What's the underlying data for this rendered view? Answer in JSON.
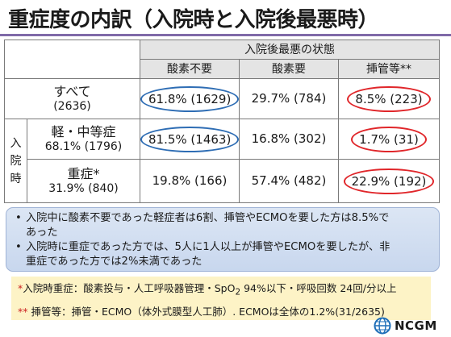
{
  "title": "重症度の内訳（入院時と入院後最悪時）",
  "table": {
    "group_header": "入院後最悪の状態",
    "col_headers": [
      "酸素不要",
      "酸素要",
      "挿管等**"
    ],
    "side_label_chars": [
      "入",
      "院",
      "時"
    ],
    "rows": [
      {
        "label": "すべて",
        "count": "(2636)",
        "cells": [
          "61.8% (1629)",
          "29.7% (784)",
          "8.5% (223)"
        ]
      },
      {
        "label": "軽・中等症",
        "count": "68.1% (1796)",
        "cells": [
          "81.5% (1463)",
          "16.8% (302)",
          "1.7% (31)"
        ]
      },
      {
        "label": "重症*",
        "count": "31.9% (840)",
        "cells": [
          "19.8% (166)",
          "57.4% (482)",
          "22.9% (192)"
        ]
      }
    ]
  },
  "summary": {
    "bullet": "•",
    "items": [
      {
        "line1": "入院中に酸素不要であった軽症者は6割、挿管やECMOを要した方は8.5%で",
        "line2": "あった"
      },
      {
        "line1": "入院時に重症であった方では、5人に1人以上が挿管やECMOを要したが、非",
        "line2": "重症であった方では2%未満であった"
      }
    ]
  },
  "notes": {
    "note1_star": "*",
    "note1_text": "入院時重症：酸素投与・人工呼吸器管理・SpO",
    "note1_sub": "2",
    "note1_tail": " 94%以下・呼吸回数 24回/分以上",
    "note2_star": "**",
    "note2_text": " 挿管等：挿管・ECMO（体外式膜型人工肺）. ECMOは全体の1.2%(31/2635)"
  },
  "logo": {
    "text": "NCGM",
    "icon": "globe-logo-icon"
  },
  "colors": {
    "blue_oval": "#2e6db4",
    "red_oval": "#e0262a",
    "title_rule": "#7f6aa8",
    "summary_bg": "#dce6f4",
    "notes_bg": "#fdf3c6"
  }
}
